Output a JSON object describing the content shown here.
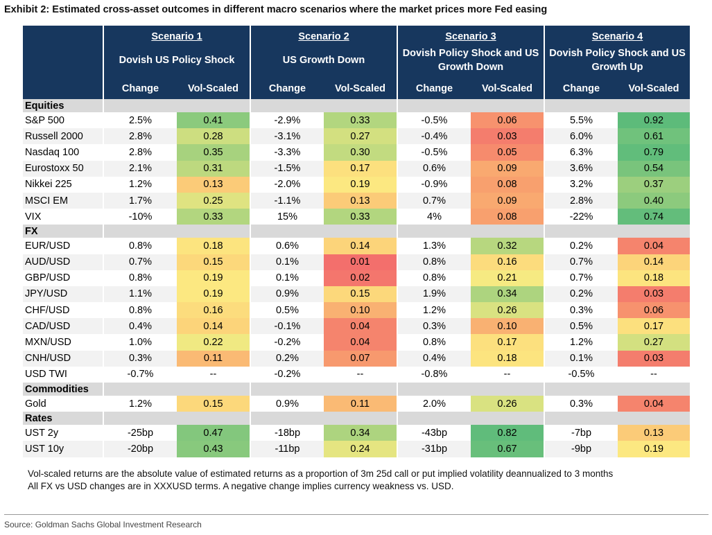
{
  "title": "Exhibit 2: Estimated cross-asset outcomes in different macro scenarios where the market prices more Fed easing",
  "scenarios": [
    {
      "label": "Scenario 1",
      "name": "Dovish US Policy Shock"
    },
    {
      "label": "Scenario 2",
      "name": "US Growth Down"
    },
    {
      "label": "Scenario 3",
      "name": "Dovish Policy Shock and US Growth Down"
    },
    {
      "label": "Scenario 4",
      "name": "Dovish Policy Shock and US Growth Up"
    }
  ],
  "subheaders": {
    "change": "Change",
    "vol_scaled": "Vol-Scaled"
  },
  "chart_data": {
    "type": "table",
    "title": "Exhibit 2: Estimated cross-asset outcomes in different macro scenarios where the market prices more Fed easing",
    "columns": [
      "Scenario 1 Change",
      "Scenario 1 Vol-Scaled",
      "Scenario 2 Change",
      "Scenario 2 Vol-Scaled",
      "Scenario 3 Change",
      "Scenario 3 Vol-Scaled",
      "Scenario 4 Change",
      "Scenario 4 Vol-Scaled"
    ],
    "sections": [
      {
        "name": "Equities",
        "rows": [
          {
            "label": "S&P 500",
            "values": [
              "2.5%",
              "0.41",
              "-2.9%",
              "0.33",
              "-0.5%",
              "0.06",
              "5.5%",
              "0.92"
            ]
          },
          {
            "label": "Russell 2000",
            "values": [
              "2.8%",
              "0.28",
              "-3.1%",
              "0.27",
              "-0.4%",
              "0.03",
              "6.0%",
              "0.61"
            ]
          },
          {
            "label": "Nasdaq 100",
            "values": [
              "2.8%",
              "0.35",
              "-3.3%",
              "0.30",
              "-0.5%",
              "0.05",
              "6.3%",
              "0.79"
            ]
          },
          {
            "label": "Eurostoxx 50",
            "values": [
              "2.1%",
              "0.31",
              "-1.5%",
              "0.17",
              "0.6%",
              "0.09",
              "3.6%",
              "0.54"
            ]
          },
          {
            "label": "Nikkei 225",
            "values": [
              "1.2%",
              "0.13",
              "-2.0%",
              "0.19",
              "-0.9%",
              "0.08",
              "3.2%",
              "0.37"
            ]
          },
          {
            "label": "MSCI EM",
            "values": [
              "1.7%",
              "0.25",
              "-1.1%",
              "0.13",
              "0.7%",
              "0.09",
              "2.8%",
              "0.40"
            ]
          },
          {
            "label": "VIX",
            "values": [
              "-10%",
              "0.33",
              "15%",
              "0.33",
              "4%",
              "0.08",
              "-22%",
              "0.74"
            ]
          }
        ]
      },
      {
        "name": "FX",
        "rows": [
          {
            "label": "EUR/USD",
            "values": [
              "0.8%",
              "0.18",
              "0.6%",
              "0.14",
              "1.3%",
              "0.32",
              "0.2%",
              "0.04"
            ]
          },
          {
            "label": "AUD/USD",
            "values": [
              "0.7%",
              "0.15",
              "0.1%",
              "0.01",
              "0.8%",
              "0.16",
              "0.7%",
              "0.14"
            ]
          },
          {
            "label": "GBP/USD",
            "values": [
              "0.8%",
              "0.19",
              "0.1%",
              "0.02",
              "0.8%",
              "0.21",
              "0.7%",
              "0.18"
            ]
          },
          {
            "label": "JPY/USD",
            "values": [
              "1.1%",
              "0.19",
              "0.9%",
              "0.15",
              "1.9%",
              "0.34",
              "0.2%",
              "0.03"
            ]
          },
          {
            "label": "CHF/USD",
            "values": [
              "0.8%",
              "0.16",
              "0.5%",
              "0.10",
              "1.2%",
              "0.26",
              "0.3%",
              "0.06"
            ]
          },
          {
            "label": "CAD/USD",
            "values": [
              "0.4%",
              "0.14",
              "-0.1%",
              "0.04",
              "0.3%",
              "0.10",
              "0.5%",
              "0.17"
            ]
          },
          {
            "label": "MXN/USD",
            "values": [
              "1.0%",
              "0.22",
              "-0.2%",
              "0.04",
              "0.8%",
              "0.17",
              "1.2%",
              "0.27"
            ]
          },
          {
            "label": "CNH/USD",
            "values": [
              "0.3%",
              "0.11",
              "0.2%",
              "0.07",
              "0.4%",
              "0.18",
              "0.1%",
              "0.03"
            ]
          },
          {
            "label": "USD TWI",
            "values": [
              "-0.7%",
              "--",
              "-0.2%",
              "--",
              "-0.8%",
              "--",
              "-0.5%",
              "--"
            ]
          }
        ]
      },
      {
        "name": "Commodities",
        "rows": [
          {
            "label": "Gold",
            "values": [
              "1.2%",
              "0.15",
              "0.9%",
              "0.11",
              "2.0%",
              "0.26",
              "0.3%",
              "0.04"
            ]
          }
        ]
      },
      {
        "name": "Rates",
        "rows": [
          {
            "label": "UST 2y",
            "values": [
              "-25bp",
              "0.47",
              "-18bp",
              "0.34",
              "-43bp",
              "0.82",
              "-7bp",
              "0.13"
            ]
          },
          {
            "label": "UST 10y",
            "values": [
              "-20bp",
              "0.43",
              "-11bp",
              "0.24",
              "-31bp",
              "0.67",
              "-9bp",
              "0.19"
            ]
          }
        ]
      }
    ]
  },
  "notes": [
    "Vol-scaled returns are the absolute value of estimated returns as a proportion of 3m 25d call or put implied volatility deannualized to 3 months",
    "All FX vs USD changes are in XXXUSD terms. A negative change implies currency weakness vs. USD."
  ],
  "source": "Source: Goldman Sachs Global Investment Research"
}
